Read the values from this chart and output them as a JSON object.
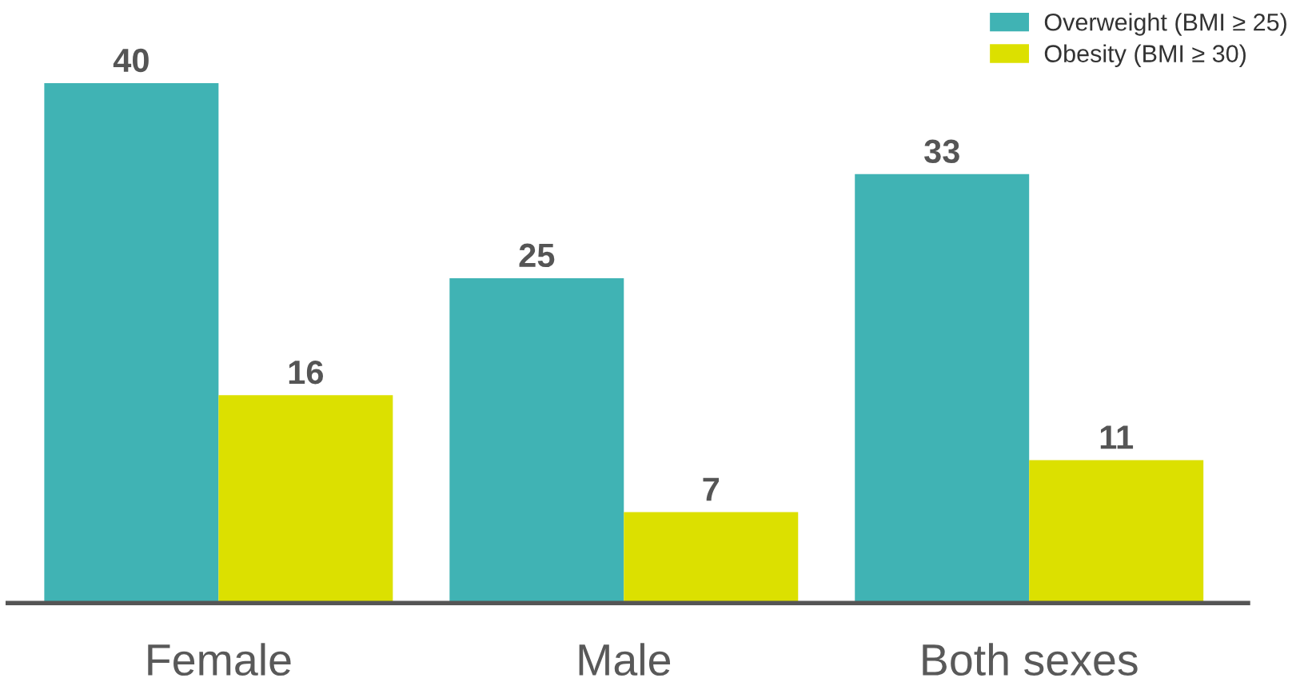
{
  "chart_data": {
    "type": "bar",
    "categories": [
      "Female",
      "Male",
      "Both sexes"
    ],
    "series": [
      {
        "name": "Overweight (BMI ≥ 25)",
        "color": "#40b3b4",
        "values": [
          40,
          25,
          33
        ]
      },
      {
        "name": "Obesity (BMI ≥ 30)",
        "color": "#dce000",
        "values": [
          16,
          7,
          11
        ]
      }
    ],
    "data_labels": true,
    "legend": "top right",
    "grid": false,
    "tick_labels": "x"
  }
}
